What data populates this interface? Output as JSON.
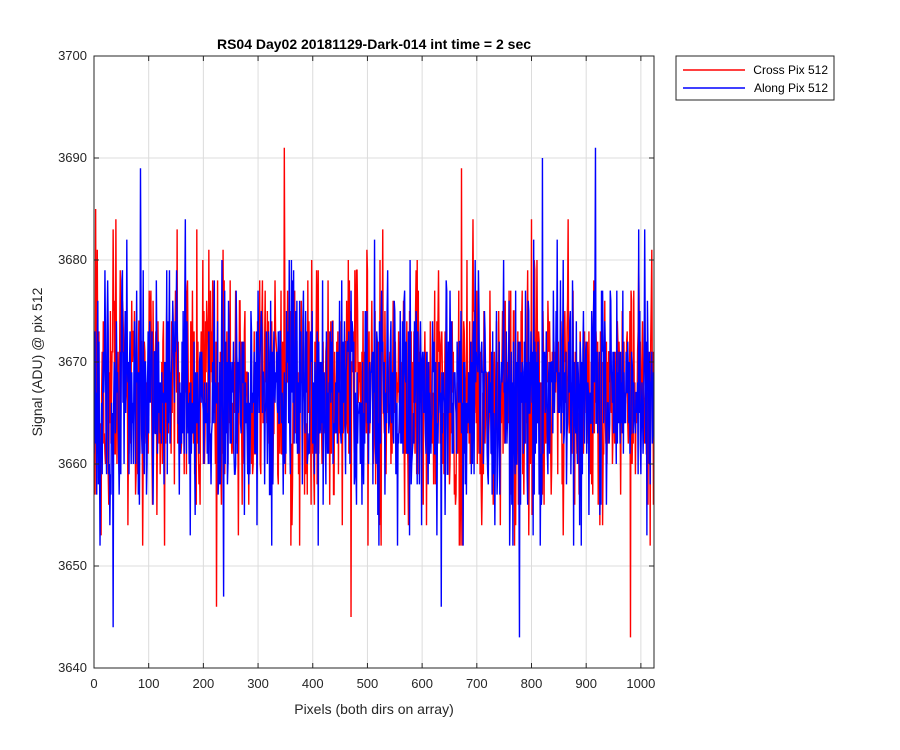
{
  "chart_data": {
    "type": "line",
    "title": "RS04 Day02 20181129-Dark-014 int time = 2 sec",
    "xlabel": "Pixels (both dirs on array)",
    "ylabel": "Signal (ADU) @ pix 512",
    "xlim": [
      0,
      1024
    ],
    "ylim": [
      3640,
      3700
    ],
    "xticks": [
      0,
      100,
      200,
      300,
      400,
      500,
      600,
      700,
      800,
      900,
      1000
    ],
    "yticks": [
      3640,
      3650,
      3660,
      3670,
      3680,
      3690,
      3700
    ],
    "grid": true,
    "legend_position": "outside-top-right",
    "noise_model": {
      "baseline": 3667,
      "typical_range": [
        3654,
        3681
      ],
      "notable_points": [
        {
          "series": "Cross Pix 512",
          "x": 348,
          "y": 3691
        },
        {
          "series": "Cross Pix 512",
          "x": 470,
          "y": 3645
        },
        {
          "series": "Cross Pix 512",
          "x": 981,
          "y": 3643
        },
        {
          "series": "Cross Pix 512",
          "x": 224,
          "y": 3646
        },
        {
          "series": "Cross Pix 512",
          "x": 672,
          "y": 3689
        },
        {
          "series": "Cross Pix 512",
          "x": 3,
          "y": 3685
        },
        {
          "series": "Along Pix 512",
          "x": 917,
          "y": 3691
        },
        {
          "series": "Along Pix 512",
          "x": 778,
          "y": 3643
        },
        {
          "series": "Along Pix 512",
          "x": 35,
          "y": 3644
        },
        {
          "series": "Along Pix 512",
          "x": 820,
          "y": 3690
        },
        {
          "series": "Along Pix 512",
          "x": 85,
          "y": 3689
        },
        {
          "series": "Along Pix 512",
          "x": 635,
          "y": 3646
        },
        {
          "series": "Along Pix 512",
          "x": 237,
          "y": 3647
        }
      ]
    },
    "series": [
      {
        "name": "Cross Pix 512",
        "color": "#ff0000"
      },
      {
        "name": "Along Pix 512",
        "color": "#0000ff"
      }
    ]
  }
}
